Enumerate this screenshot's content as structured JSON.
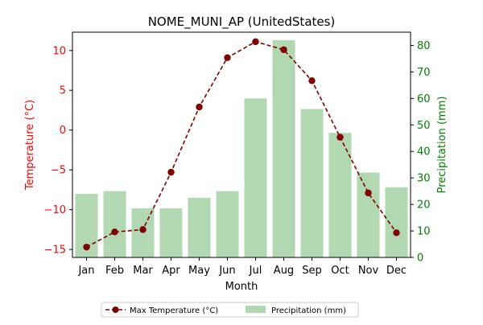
{
  "chart_data": {
    "type": "bar+line",
    "title": "NOME_MUNI_AP (UnitedStates)",
    "xlabel": "Month",
    "ylabel_left": "Temperature (°C)",
    "ylabel_right": "Precipitation (mm)",
    "categories": [
      "Jan",
      "Feb",
      "Mar",
      "Apr",
      "May",
      "Jun",
      "Jul",
      "Aug",
      "Sep",
      "Oct",
      "Nov",
      "Dec"
    ],
    "y_left_lim": [
      -16,
      12.3
    ],
    "y_left_ticks": [
      -15,
      -10,
      -5,
      0,
      5,
      10
    ],
    "y_right_lim": [
      0,
      85
    ],
    "y_right_ticks": [
      0,
      10,
      20,
      30,
      40,
      50,
      60,
      70,
      80
    ],
    "series": [
      {
        "name": "Max Temperature (°C)",
        "type": "line",
        "axis": "left",
        "color": "#800000",
        "values": [
          -14.7,
          -12.8,
          -12.5,
          -5.3,
          2.9,
          9.1,
          11.1,
          10.1,
          6.2,
          -0.9,
          -7.9,
          -12.9
        ]
      },
      {
        "name": "Precipitation (mm)",
        "type": "bar",
        "axis": "right",
        "color": "#b2d8b2",
        "values": [
          24,
          25,
          18.5,
          18.5,
          22.5,
          25,
          60,
          82,
          56,
          47,
          32,
          26.5
        ]
      }
    ],
    "grid": false,
    "legend_position": "bottom-center",
    "left_axis_color": "#ff0000",
    "right_axis_color": "#008000"
  }
}
